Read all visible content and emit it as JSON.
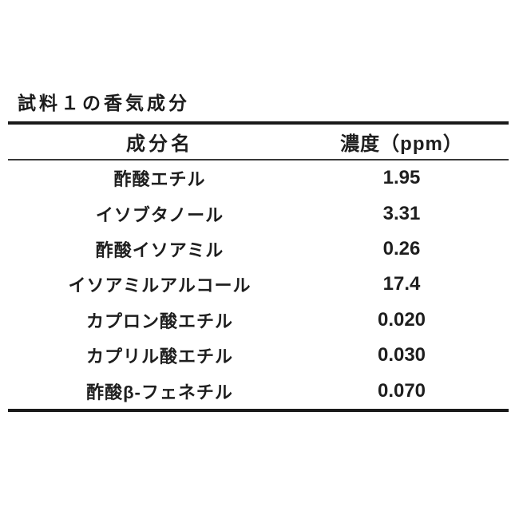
{
  "title": "試料１の香気成分",
  "table": {
    "columns": [
      "成分名",
      "濃度（ppm）"
    ],
    "rows": [
      {
        "name": "酢酸エチル",
        "value": "1.95"
      },
      {
        "name": "イソブタノール",
        "value": "3.31"
      },
      {
        "name": "酢酸イソアミル",
        "value": "0.26"
      },
      {
        "name": "イソアミルアルコール",
        "value": "17.4"
      },
      {
        "name": "カプロン酸エチル",
        "value": "0.020"
      },
      {
        "name": "カプリル酸エチル",
        "value": "0.030"
      },
      {
        "name": "酢酸β-フェネチル",
        "value": "0.070"
      }
    ]
  }
}
